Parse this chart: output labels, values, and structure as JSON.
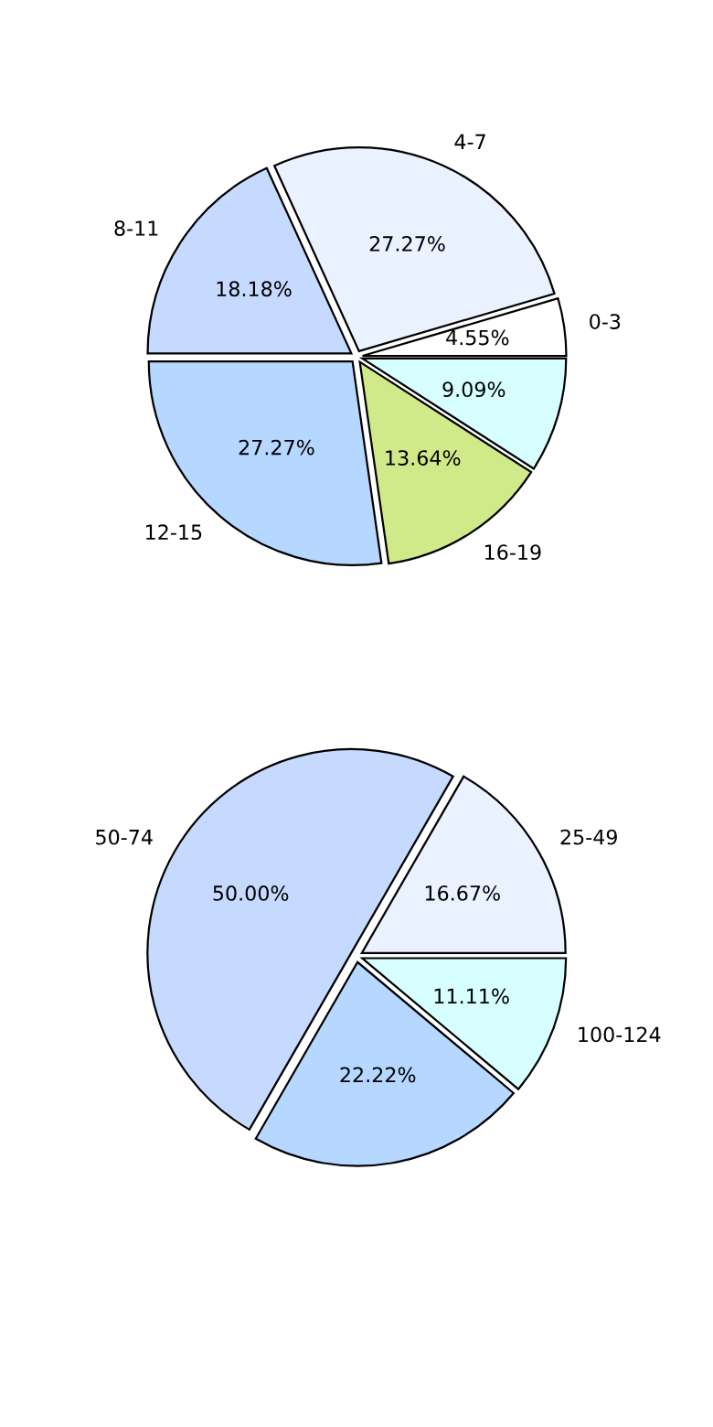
{
  "chart_data": [
    {
      "type": "pie",
      "categories": [
        "0-3",
        "4-7",
        "8-11",
        "12-15",
        "16-19",
        null
      ],
      "values": [
        4.55,
        27.27,
        18.18,
        27.27,
        13.64,
        9.09
      ],
      "value_labels": [
        "4.55%",
        "27.27%",
        "18.18%",
        "27.27%",
        "13.64%",
        "9.09%"
      ],
      "colors": [
        "#ffffff",
        "#eaf1ff",
        "#c6d9ff",
        "#b6d7ff",
        "#d0ea8a",
        "#d8ffff"
      ]
    },
    {
      "type": "pie",
      "categories": [
        "25-49",
        "50-74",
        null,
        "100-124"
      ],
      "values": [
        16.67,
        50.0,
        22.22,
        11.11
      ],
      "value_labels": [
        "16.67%",
        "50.00%",
        "22.22%",
        "11.11%"
      ],
      "colors": [
        "#eaf1ff",
        "#c6d9ff",
        "#b6d7ff",
        "#d8ffff"
      ]
    }
  ]
}
